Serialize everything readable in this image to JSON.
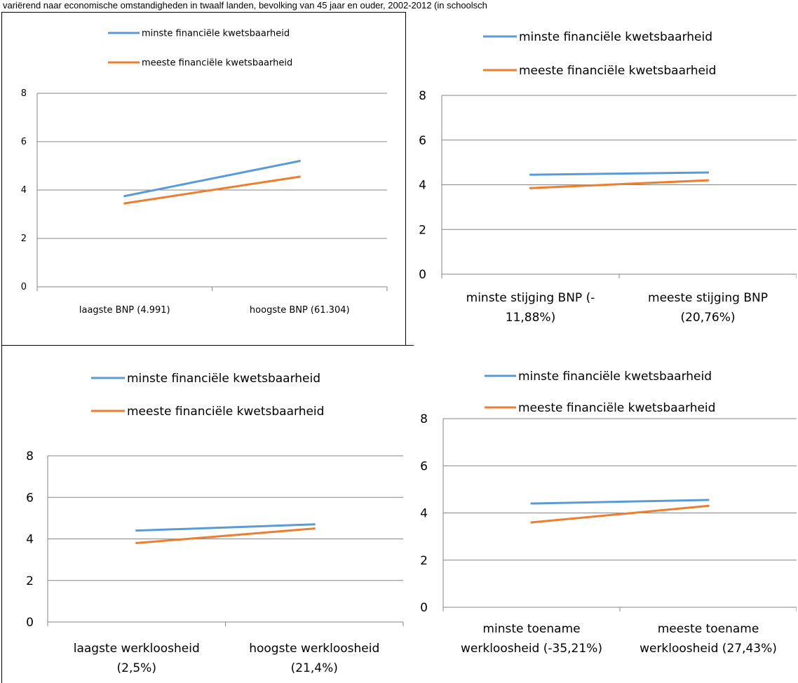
{
  "caption": "variërend naar economische omstandigheden in twaalf landen, bevolking van 45 jaar en ouder, 2002-2012 (in schoolsch",
  "colors": {
    "least": "#5b9bd5",
    "most": "#ed7d31",
    "grid": "#868686"
  },
  "chart_data": [
    {
      "type": "line",
      "categories": [
        "laagste BNP (4.991)",
        "hoogste BNP (61.304)"
      ],
      "series": [
        {
          "name": "minste financiële kwetsbaarheid",
          "values": [
            3.75,
            5.2
          ]
        },
        {
          "name": "meeste financiële kwetsbaarheid",
          "values": [
            3.45,
            4.55
          ]
        }
      ],
      "ylim": [
        0,
        8
      ],
      "yticks": [
        0,
        2,
        4,
        6,
        8
      ],
      "grid": true,
      "legend": "top-center"
    },
    {
      "type": "line",
      "categories": [
        "minste stijging BNP (-11,88%)",
        "meeste stijging BNP (20,76%)"
      ],
      "category_lines": [
        [
          "minste stijging BNP (-",
          "11,88%)"
        ],
        [
          "meeste stijging BNP",
          "(20,76%)"
        ]
      ],
      "series": [
        {
          "name": "minste financiële kwetsbaarheid",
          "values": [
            4.45,
            4.55
          ]
        },
        {
          "name": "meeste financiële kwetsbaarheid",
          "values": [
            3.85,
            4.2
          ]
        }
      ],
      "ylim": [
        0,
        8
      ],
      "yticks": [
        0,
        2,
        4,
        6,
        8
      ],
      "grid": true,
      "legend": "top-center"
    },
    {
      "type": "line",
      "categories": [
        "laagste werkloosheid (2,5%)",
        "hoogste werkloosheid (21,4%)"
      ],
      "category_lines": [
        [
          "laagste werkloosheid",
          "(2,5%)"
        ],
        [
          "hoogste werkloosheid",
          "(21,4%)"
        ]
      ],
      "series": [
        {
          "name": "minste financiële kwetsbaarheid",
          "values": [
            4.4,
            4.7
          ]
        },
        {
          "name": "meeste financiële kwetsbaarheid",
          "values": [
            3.8,
            4.5
          ]
        }
      ],
      "ylim": [
        0,
        8
      ],
      "yticks": [
        0,
        2,
        4,
        6,
        8
      ],
      "grid": true,
      "legend": "top-center"
    },
    {
      "type": "line",
      "categories": [
        "minste toename werkloosheid (-35,21%)",
        "meeste toename werkloosheid (27,43%)"
      ],
      "category_lines": [
        [
          "minste toename",
          "werkloosheid (-35,21%)"
        ],
        [
          "meeste toename",
          "werkloosheid (27,43%)"
        ]
      ],
      "series": [
        {
          "name": "minste financiële kwetsbaarheid",
          "values": [
            4.4,
            4.55
          ]
        },
        {
          "name": "meeste financiële kwetsbaarheid",
          "values": [
            3.6,
            4.3
          ]
        }
      ],
      "ylim": [
        0,
        8
      ],
      "yticks": [
        0,
        2,
        4,
        6,
        8
      ],
      "grid": true,
      "legend": "top-center"
    }
  ]
}
